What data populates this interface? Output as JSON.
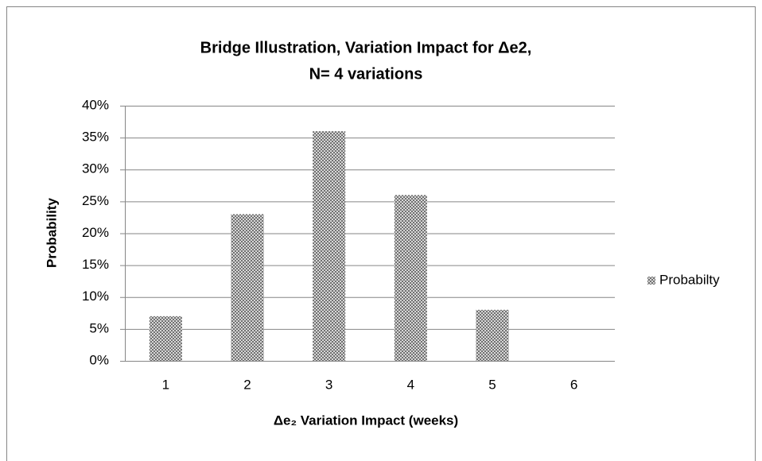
{
  "chart_data": {
    "type": "bar",
    "title": [
      "Bridge Illustration, Variation Impact for Δe2,",
      "N= 4 variations"
    ],
    "x_label": "Δe₂ Variation Impact (weeks)",
    "y_label": "Probability",
    "categories": [
      "1",
      "2",
      "3",
      "4",
      "5",
      "6"
    ],
    "series": [
      {
        "name": "Probabilty",
        "color": "#7f7f7f",
        "values": [
          7,
          23,
          36,
          26,
          8,
          0
        ]
      }
    ],
    "ylim": [
      0,
      40
    ],
    "yticks": [
      {
        "value": 0,
        "label": "0%"
      },
      {
        "value": 5,
        "label": "5%"
      },
      {
        "value": 10,
        "label": "10%"
      },
      {
        "value": 15,
        "label": "15%"
      },
      {
        "value": 20,
        "label": "20%"
      },
      {
        "value": 25,
        "label": "25%"
      },
      {
        "value": 30,
        "label": "30%"
      },
      {
        "value": 35,
        "label": "35%"
      },
      {
        "value": 40,
        "label": "40%"
      }
    ],
    "grid": true,
    "legend": "right"
  }
}
